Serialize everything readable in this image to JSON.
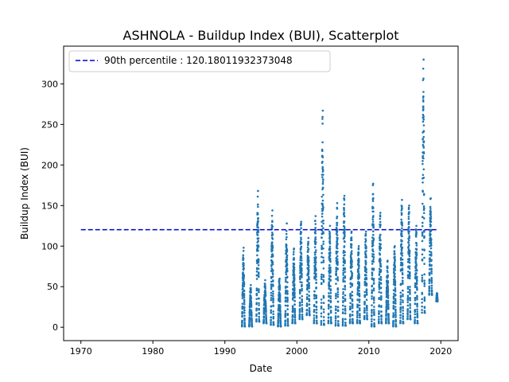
{
  "chart_data": {
    "type": "scatter",
    "title": "ASHNOLA - Buildup Index (BUI), Scatterplot",
    "xlabel": "Date",
    "ylabel": "Buildup Index (BUI)",
    "xlim": [
      1967.6,
      2022.4
    ],
    "ylim": [
      -16.5,
      346.5
    ],
    "xticks": [
      "1970",
      "1980",
      "1990",
      "2000",
      "2010",
      "2020"
    ],
    "xtick_values": [
      1970,
      1980,
      1990,
      2000,
      2010,
      2020
    ],
    "yticks": [
      "0",
      "50",
      "100",
      "150",
      "200",
      "250",
      "300"
    ],
    "ytick_values": [
      0,
      50,
      100,
      150,
      200,
      250,
      300
    ],
    "grid": false,
    "legend_position": "top-left",
    "series": [
      {
        "name": "90th percentile : 120.18011932373048",
        "kind": "dashed-line",
        "color": "#0000cc",
        "x": [
          1970,
          2019.6
        ],
        "y": [
          120.18011932373048,
          120.18011932373048
        ]
      },
      {
        "kind": "points",
        "color": "#1f77b4",
        "seasons": [
          {
            "year": 1992,
            "start": 1992.38,
            "end": 1992.78,
            "peak": 98,
            "min": 1
          },
          {
            "year": 1993,
            "start": 1993.38,
            "end": 1993.78,
            "peak": 52,
            "min": 1
          },
          {
            "year": 1994,
            "start": 1994.38,
            "end": 1994.78,
            "peak": 168,
            "min": 7
          },
          {
            "year": 1995,
            "start": 1995.38,
            "end": 1995.78,
            "peak": 58,
            "min": 5
          },
          {
            "year": 1996,
            "start": 1996.38,
            "end": 1996.78,
            "peak": 144,
            "min": 3
          },
          {
            "year": 1997,
            "start": 1997.38,
            "end": 1997.78,
            "peak": 60,
            "min": 1
          },
          {
            "year": 1998,
            "start": 1998.38,
            "end": 1998.78,
            "peak": 128,
            "min": 2
          },
          {
            "year": 1999,
            "start": 1999.38,
            "end": 1999.78,
            "peak": 97,
            "min": 5
          },
          {
            "year": 2000,
            "start": 2000.38,
            "end": 2000.78,
            "peak": 130,
            "min": 10
          },
          {
            "year": 2001,
            "start": 2001.38,
            "end": 2001.78,
            "peak": 110,
            "min": 15
          },
          {
            "year": 2002,
            "start": 2002.38,
            "end": 2002.78,
            "peak": 137,
            "min": 5
          },
          {
            "year": 2003,
            "start": 2003.38,
            "end": 2003.78,
            "peak": 267,
            "min": 3
          },
          {
            "year": 2004,
            "start": 2004.38,
            "end": 2004.78,
            "peak": 125,
            "min": 5
          },
          {
            "year": 2005,
            "start": 2005.38,
            "end": 2005.78,
            "peak": 153,
            "min": 2
          },
          {
            "year": 2006,
            "start": 2006.38,
            "end": 2006.78,
            "peak": 162,
            "min": 2
          },
          {
            "year": 2007,
            "start": 2007.38,
            "end": 2007.78,
            "peak": 118,
            "min": 5
          },
          {
            "year": 2008,
            "start": 2008.38,
            "end": 2008.78,
            "peak": 100,
            "min": 5
          },
          {
            "year": 2009,
            "start": 2009.38,
            "end": 2009.78,
            "peak": 118,
            "min": 10
          },
          {
            "year": 2010,
            "start": 2010.38,
            "end": 2010.78,
            "peak": 177,
            "min": 1
          },
          {
            "year": 2011,
            "start": 2011.38,
            "end": 2011.78,
            "peak": 141,
            "min": 5
          },
          {
            "year": 2012,
            "start": 2012.38,
            "end": 2012.78,
            "peak": 82,
            "min": 5
          },
          {
            "year": 2013,
            "start": 2013.38,
            "end": 2013.78,
            "peak": 100,
            "min": 1
          },
          {
            "year": 2014,
            "start": 2014.38,
            "end": 2014.78,
            "peak": 157,
            "min": 5
          },
          {
            "year": 2015,
            "start": 2015.38,
            "end": 2015.78,
            "peak": 150,
            "min": 10
          },
          {
            "year": 2016,
            "start": 2016.38,
            "end": 2016.78,
            "peak": 125,
            "min": 5
          },
          {
            "year": 2017,
            "start": 2017.38,
            "end": 2017.78,
            "peak": 330,
            "min": 18
          },
          {
            "year": 2018,
            "start": 2018.38,
            "end": 2018.78,
            "peak": 159,
            "min": 40
          },
          {
            "year": 2019,
            "start": 2019.38,
            "end": 2019.55,
            "peak": 42,
            "min": 32
          }
        ]
      }
    ]
  }
}
